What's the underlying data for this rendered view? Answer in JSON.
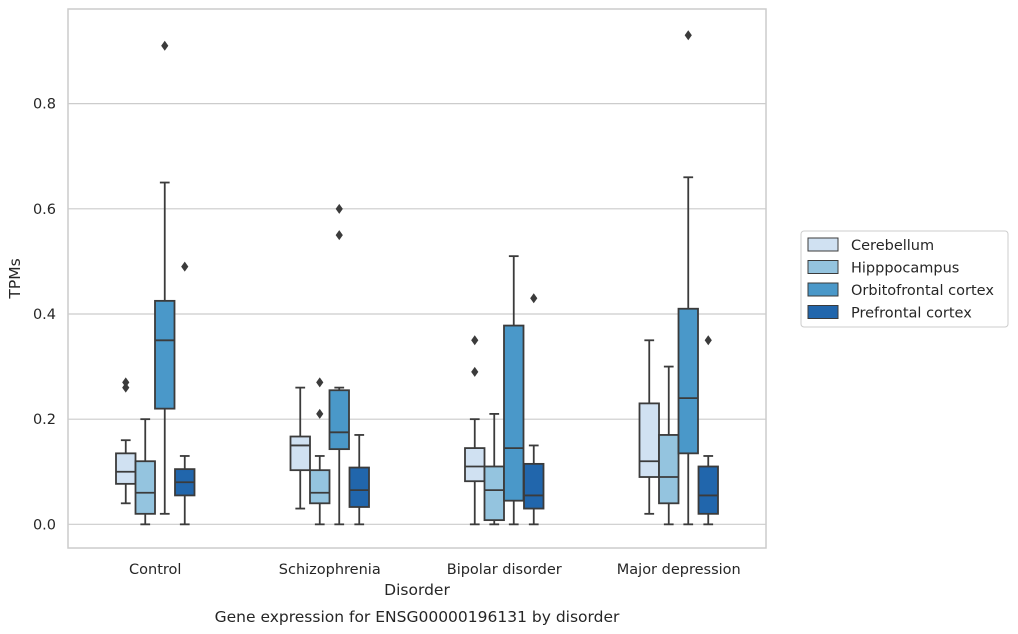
{
  "chart_data": {
    "type": "box",
    "title": "",
    "caption": "Gene expression for ENSG00000196131 by disorder",
    "xlabel": "Disorder",
    "ylabel": "TPMs",
    "ylim": [
      -0.045,
      0.98
    ],
    "yticks": [
      0.0,
      0.2,
      0.4,
      0.6,
      0.8
    ],
    "ytick_labels": [
      "0.0",
      "0.2",
      "0.4",
      "0.6",
      "0.8"
    ],
    "grid": "horizontal",
    "legend_position": "right",
    "categories": [
      "Control",
      "Schizophrenia",
      "Bipolar disorder",
      "Major depression"
    ],
    "series": [
      {
        "name": "Cerebellum",
        "color": "#d0e1f2",
        "boxes": [
          {
            "whislo": 0.04,
            "q1": 0.077,
            "med": 0.1,
            "q3": 0.135,
            "whishi": 0.16,
            "fliers": [
              0.26,
              0.27
            ]
          },
          {
            "whislo": 0.03,
            "q1": 0.103,
            "med": 0.15,
            "q3": 0.167,
            "whishi": 0.26,
            "fliers": []
          },
          {
            "whislo": 0.0,
            "q1": 0.082,
            "med": 0.11,
            "q3": 0.145,
            "whishi": 0.2,
            "fliers": [
              0.29,
              0.35
            ]
          },
          {
            "whislo": 0.02,
            "q1": 0.09,
            "med": 0.12,
            "q3": 0.23,
            "whishi": 0.35,
            "fliers": []
          }
        ]
      },
      {
        "name": "Hipppocampus",
        "color": "#94c4df",
        "boxes": [
          {
            "whislo": 0.0,
            "q1": 0.02,
            "med": 0.06,
            "q3": 0.12,
            "whishi": 0.2,
            "fliers": []
          },
          {
            "whislo": 0.0,
            "q1": 0.04,
            "med": 0.06,
            "q3": 0.103,
            "whishi": 0.13,
            "fliers": [
              0.21,
              0.27
            ]
          },
          {
            "whislo": 0.0,
            "q1": 0.008,
            "med": 0.065,
            "q3": 0.11,
            "whishi": 0.21,
            "fliers": []
          },
          {
            "whislo": 0.0,
            "q1": 0.04,
            "med": 0.09,
            "q3": 0.17,
            "whishi": 0.3,
            "fliers": []
          }
        ]
      },
      {
        "name": "Orbitofrontal cortex",
        "color": "#4a98c9",
        "boxes": [
          {
            "whislo": 0.02,
            "q1": 0.22,
            "med": 0.35,
            "q3": 0.425,
            "whishi": 0.65,
            "fliers": [
              0.91
            ]
          },
          {
            "whislo": 0.0,
            "q1": 0.143,
            "med": 0.175,
            "q3": 0.255,
            "whishi": 0.26,
            "fliers": [
              0.55,
              0.6
            ]
          },
          {
            "whislo": 0.0,
            "q1": 0.045,
            "med": 0.145,
            "q3": 0.378,
            "whishi": 0.51,
            "fliers": []
          },
          {
            "whislo": 0.0,
            "q1": 0.135,
            "med": 0.24,
            "q3": 0.41,
            "whishi": 0.66,
            "fliers": [
              0.93
            ]
          }
        ]
      },
      {
        "name": "Prefrontal cortex",
        "color": "#2166ac",
        "boxes": [
          {
            "whislo": 0.0,
            "q1": 0.055,
            "med": 0.08,
            "q3": 0.105,
            "whishi": 0.13,
            "fliers": [
              0.49
            ]
          },
          {
            "whislo": 0.0,
            "q1": 0.033,
            "med": 0.065,
            "q3": 0.108,
            "whishi": 0.17,
            "fliers": []
          },
          {
            "whislo": 0.0,
            "q1": 0.03,
            "med": 0.055,
            "q3": 0.115,
            "whishi": 0.15,
            "fliers": [
              0.43
            ]
          },
          {
            "whislo": 0.0,
            "q1": 0.02,
            "med": 0.055,
            "q3": 0.11,
            "whishi": 0.13,
            "fliers": [
              0.35
            ]
          }
        ]
      }
    ]
  }
}
